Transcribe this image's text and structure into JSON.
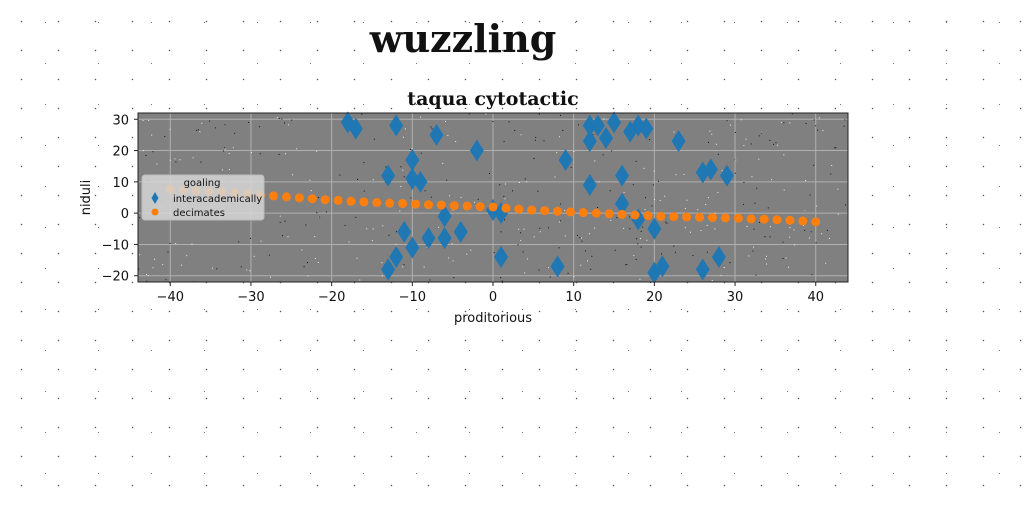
{
  "figure_title": "wuzzling",
  "chart_data": {
    "type": "scatter",
    "title": "taqua cytotactic",
    "xlabel": "proditorious",
    "ylabel": "niduli",
    "xlim": [
      -44,
      44
    ],
    "ylim": [
      -22,
      32
    ],
    "xticks": [
      -40,
      -30,
      -20,
      -10,
      0,
      10,
      20,
      30,
      40
    ],
    "yticks": [
      -20,
      -10,
      0,
      10,
      20,
      30
    ],
    "grid": true,
    "background_color": "#808080",
    "legend": {
      "title": "goaling",
      "placement": "center-left"
    },
    "series": [
      {
        "name": "interacademically",
        "marker": "thin_diamond",
        "color": "#1f77b4",
        "points": [
          [
            -18,
            29
          ],
          [
            -17,
            27
          ],
          [
            -12,
            28
          ],
          [
            -7,
            25
          ],
          [
            -13,
            12
          ],
          [
            -10,
            17
          ],
          [
            -10,
            11
          ],
          [
            -9,
            10
          ],
          [
            -2,
            20
          ],
          [
            -11,
            -6
          ],
          [
            -10,
            -11
          ],
          [
            -12,
            -14
          ],
          [
            -13,
            -18
          ],
          [
            -6,
            -1
          ],
          [
            -6,
            -8
          ],
          [
            -8,
            -8
          ],
          [
            -4,
            -6
          ],
          [
            0,
            1
          ],
          [
            1,
            0
          ],
          [
            1,
            -14
          ],
          [
            8,
            -17
          ],
          [
            9,
            17
          ],
          [
            12,
            28
          ],
          [
            13,
            28
          ],
          [
            12,
            23
          ],
          [
            14,
            24
          ],
          [
            15,
            29
          ],
          [
            17,
            26
          ],
          [
            18,
            28
          ],
          [
            19,
            27
          ],
          [
            16,
            12
          ],
          [
            12,
            9
          ],
          [
            16,
            3
          ],
          [
            18,
            -2
          ],
          [
            20,
            -5
          ],
          [
            21,
            -17
          ],
          [
            20,
            -19
          ],
          [
            23,
            23
          ],
          [
            26,
            13
          ],
          [
            27,
            14
          ],
          [
            29,
            12
          ],
          [
            26,
            -18
          ],
          [
            28,
            -14
          ]
        ]
      },
      {
        "name": "decimates",
        "marker": "circle",
        "color": "#ff7f0e",
        "x": [
          -40,
          -38.4,
          -36.8,
          -35.2,
          -33.6,
          -32,
          -30.4,
          -28.8,
          -27.2,
          -25.6,
          -24,
          -22.4,
          -20.8,
          -19.2,
          -17.6,
          -16,
          -14.4,
          -12.8,
          -11.2,
          -9.6,
          -8,
          -6.4,
          -4.8,
          -3.2,
          -1.6,
          0,
          1.6,
          3.2,
          4.8,
          6.4,
          8,
          9.6,
          11.2,
          12.8,
          14.4,
          16,
          17.6,
          19.2,
          20.8,
          22.4,
          24,
          25.6,
          27.2,
          28.8,
          30.4,
          32,
          33.6,
          35.2,
          36.8,
          38.4,
          40
        ],
        "y": [
          7.6,
          7.4,
          7.2,
          6.9,
          6.7,
          6.5,
          6.2,
          5.8,
          5.5,
          5.2,
          4.9,
          4.6,
          4.3,
          4.1,
          3.8,
          3.6,
          3.4,
          3.2,
          3.1,
          2.9,
          2.7,
          2.6,
          2.4,
          2.3,
          2.1,
          2.0,
          1.6,
          1.3,
          1.0,
          0.8,
          0.6,
          0.4,
          0.2,
          0.0,
          -0.2,
          -0.4,
          -0.6,
          -0.8,
          -1.0,
          -1.1,
          -1.2,
          -1.3,
          -1.4,
          -1.5,
          -1.6,
          -1.8,
          -1.9,
          -2.1,
          -2.3,
          -2.5,
          -2.8
        ]
      }
    ]
  }
}
